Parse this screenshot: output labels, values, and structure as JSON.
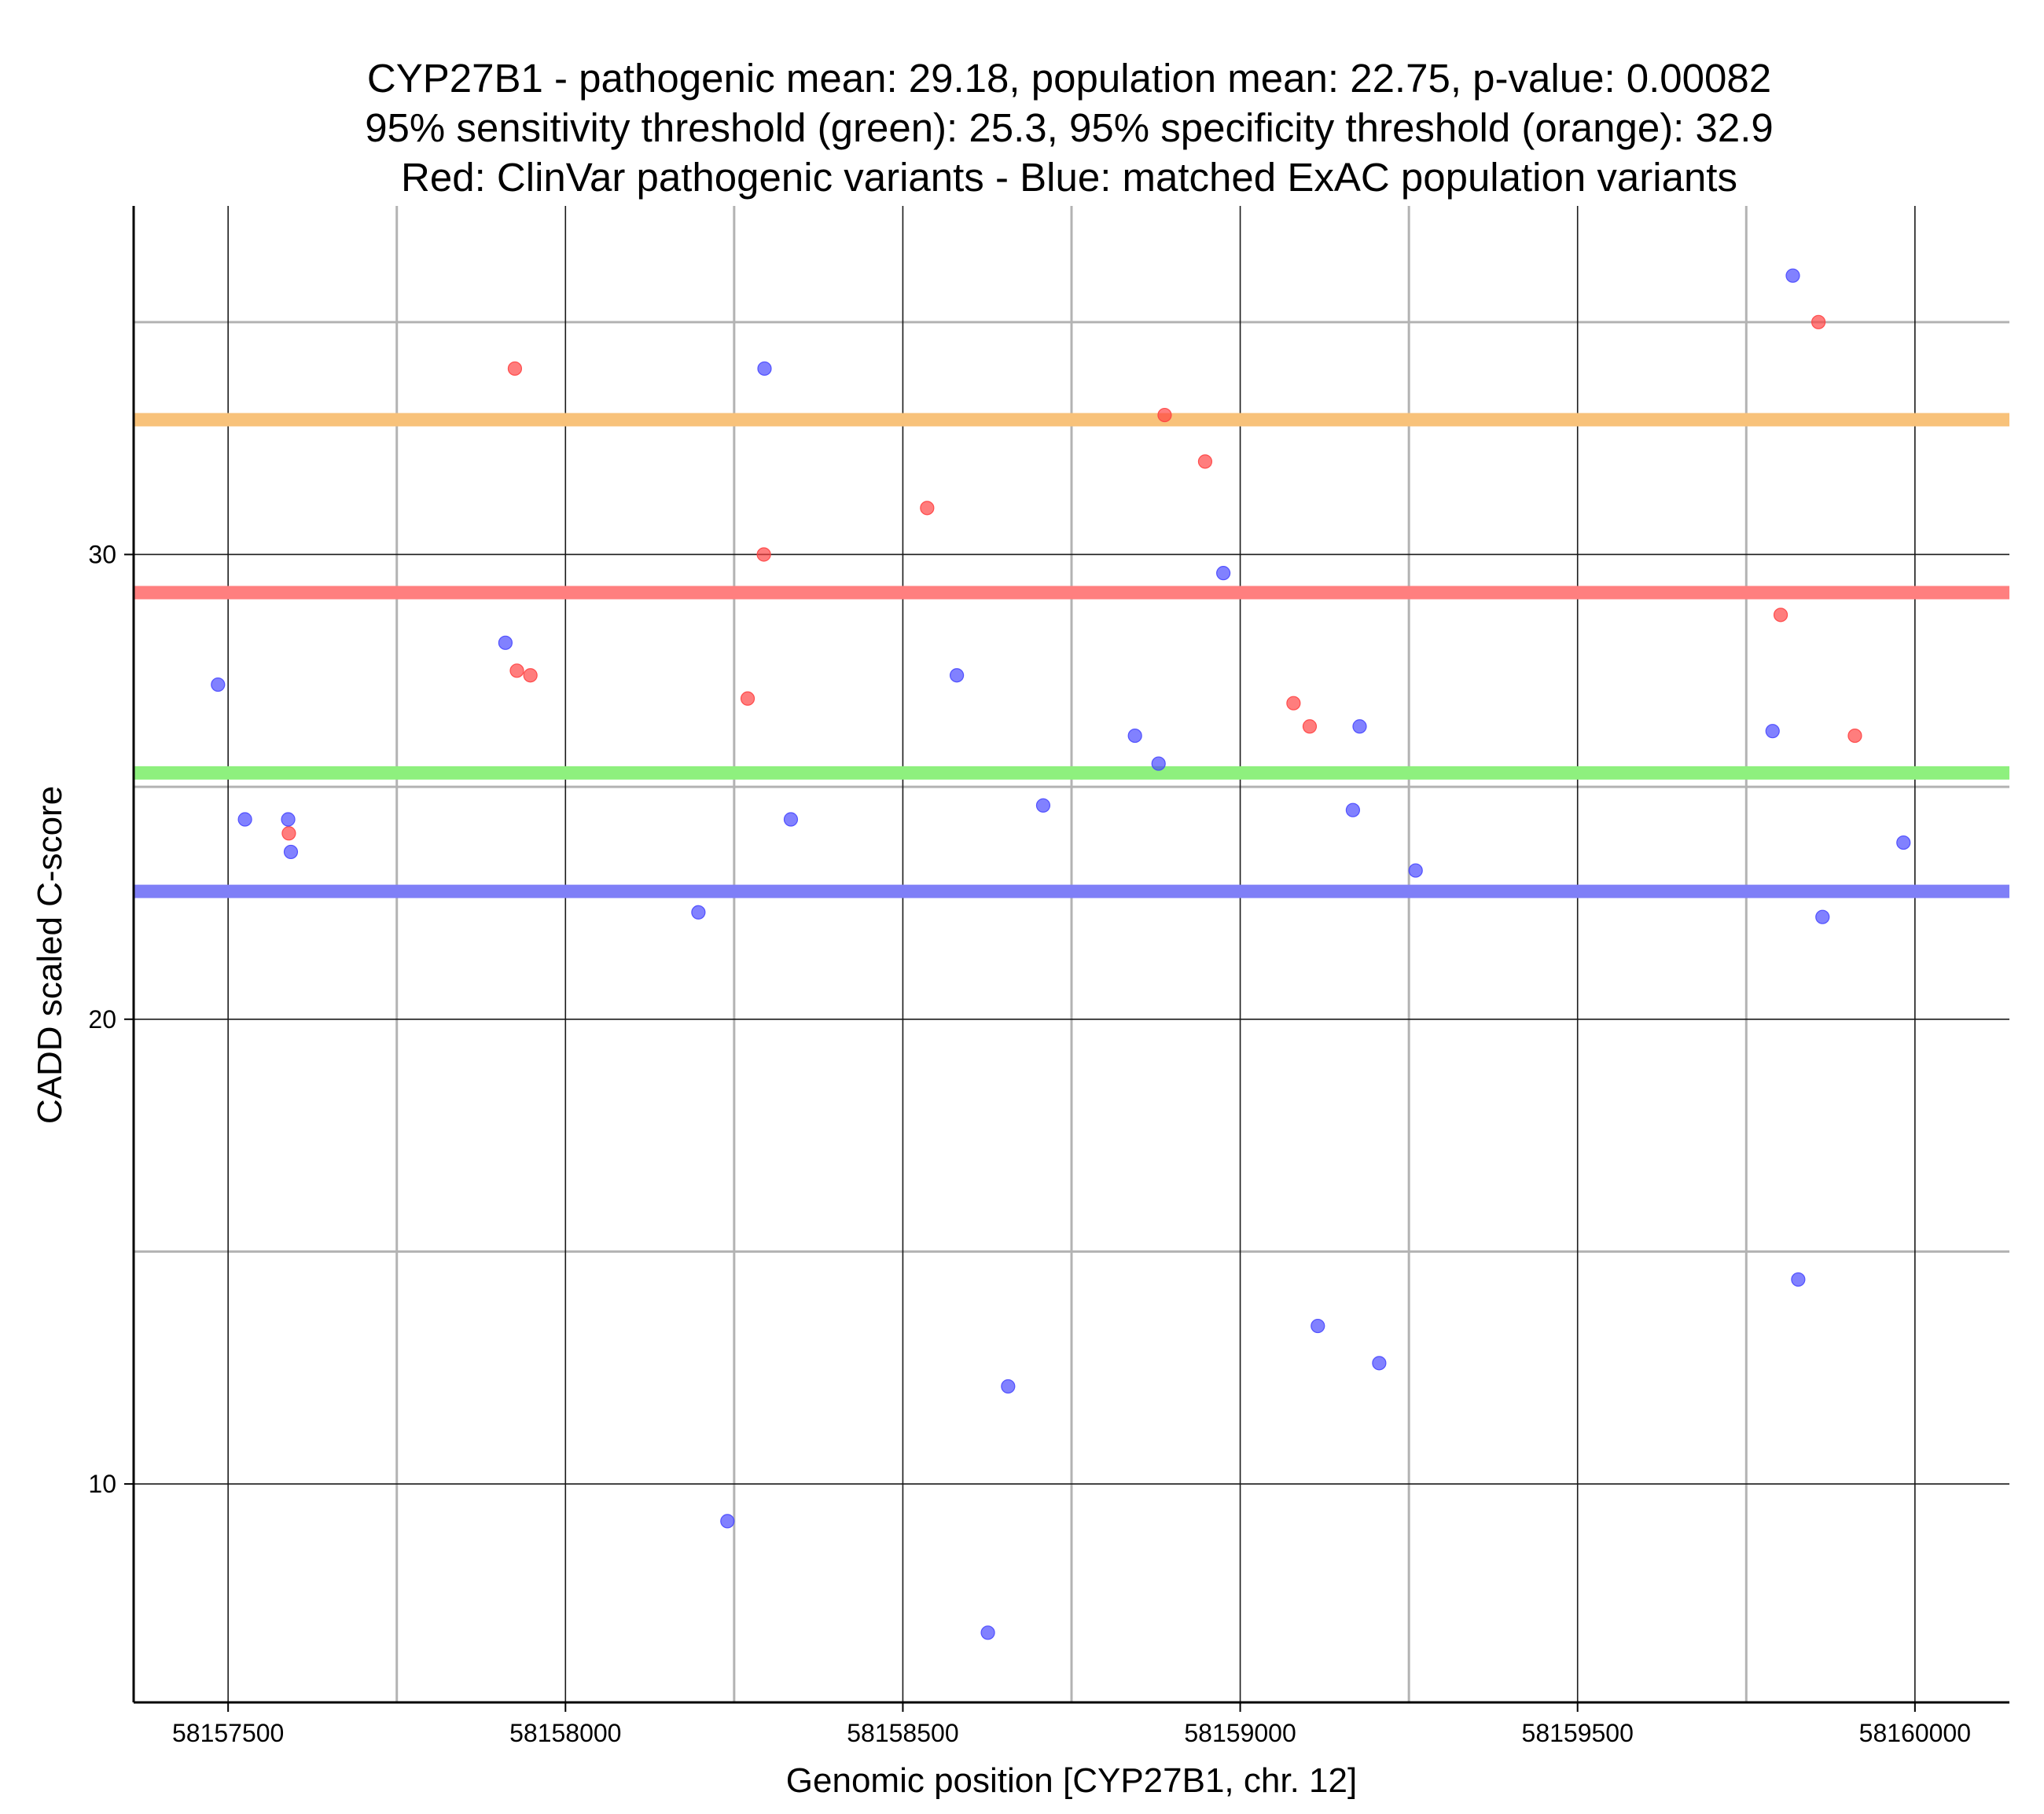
{
  "chart_data": {
    "type": "scatter",
    "title": [
      "CYP27B1 - pathogenic mean: 29.18, population mean: 22.75, p-value: 0.00082",
      "95% sensitivity threshold (green): 25.3, 95% specificity threshold (orange): 32.9",
      "Red: ClinVar pathogenic variants - Blue: matched ExAC population variants"
    ],
    "xlabel": "Genomic position [CYP27B1, chr. 12]",
    "ylabel": "CADD scaled C-score",
    "xlim": [
      58157360,
      58160140
    ],
    "ylim": [
      5.3,
      37.5
    ],
    "x_ticks": [
      58157500,
      58158000,
      58158500,
      58159000,
      58159500,
      58160000
    ],
    "x_tick_labels": [
      "58157500",
      "58158000",
      "58158500",
      "58159000",
      "58159500",
      "58160000"
    ],
    "x_minor_grid": [
      58157750,
      58158250,
      58158750,
      58159250,
      58159750
    ],
    "y_ticks": [
      10,
      20,
      30
    ],
    "y_tick_labels": [
      "10",
      "20",
      "30"
    ],
    "y_minor_grid": [
      15,
      25,
      35
    ],
    "grid": true,
    "thresholds": [
      {
        "name": "specificity threshold",
        "value": 32.9,
        "color": "#f8c27a"
      },
      {
        "name": "pathogenic mean",
        "value": 29.18,
        "color": "#ff7f7f"
      },
      {
        "name": "sensitivity threshold",
        "value": 25.3,
        "color": "#8ef07e"
      },
      {
        "name": "population mean",
        "value": 22.75,
        "color": "#7f7ff7"
      }
    ],
    "series": [
      {
        "name": "ClinVar pathogenic variants",
        "color": "#ff4040",
        "x": [
          58157590,
          58157925,
          58157928,
          58157948,
          58158270,
          58158294,
          58158536,
          58158888,
          58158948,
          58159079,
          58159103,
          58159801,
          58159857,
          58159911
        ],
        "y": [
          24.0,
          34.0,
          27.5,
          27.4,
          26.9,
          30.0,
          31.0,
          33.0,
          32.0,
          26.8,
          26.3,
          28.7,
          35.0,
          26.1
        ]
      },
      {
        "name": "matched ExAC population variants",
        "color": "#4646ff",
        "x": [
          58157485,
          58157525,
          58157589,
          58157593,
          58157911,
          58158197,
          58158240,
          58158295,
          58158334,
          58158580,
          58158626,
          58158656,
          58158708,
          58158844,
          58158879,
          58158975,
          58159115,
          58159167,
          58159177,
          58159206,
          58159260,
          58159789,
          58159819,
          58159827,
          58159863,
          58159983
        ],
        "y": [
          27.2,
          24.3,
          24.3,
          23.6,
          28.1,
          22.3,
          9.2,
          34.0,
          24.3,
          27.4,
          6.8,
          12.1,
          24.6,
          26.1,
          25.5,
          29.6,
          13.4,
          24.5,
          26.3,
          12.6,
          23.2,
          26.2,
          36.0,
          14.4,
          22.2,
          23.8
        ]
      }
    ]
  }
}
